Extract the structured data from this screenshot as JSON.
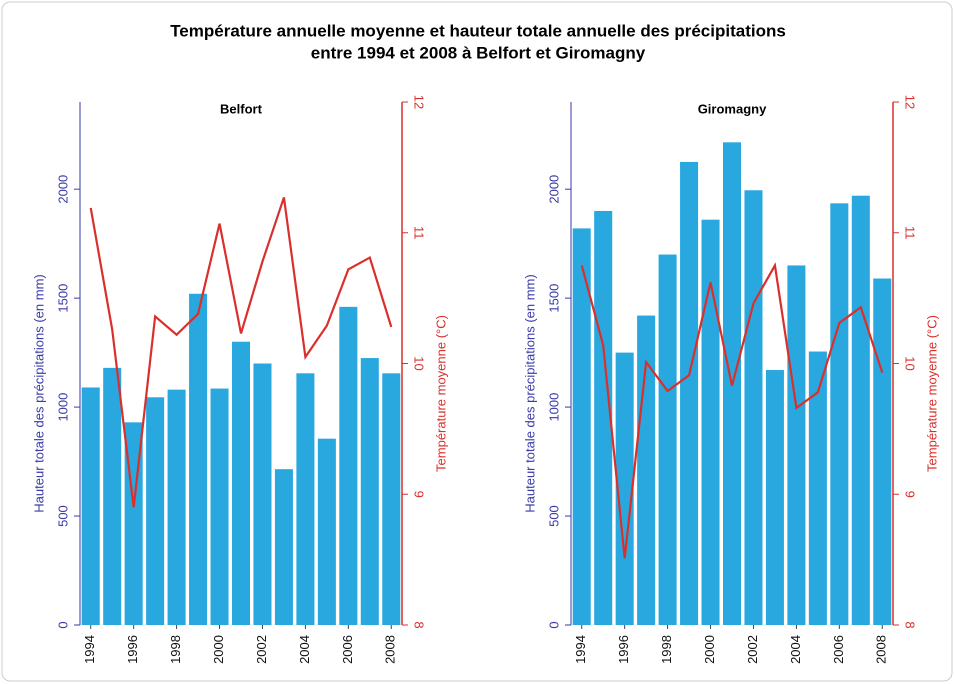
{
  "title": [
    "Température annuelle moyenne et  hauteur totale annuelle des précipitations",
    "entre 1994 et 2008 à Belfort et Giromagny"
  ],
  "chart_data": [
    {
      "type": "bar-line",
      "title": "Belfort",
      "y_label": "Hauteur totale des précipitations (en mm)",
      "y2_label": "Température moyenne (°C)",
      "x": [
        1994,
        1995,
        1996,
        1997,
        1998,
        1999,
        2000,
        2001,
        2002,
        2003,
        2004,
        2005,
        2006,
        2007,
        2008
      ],
      "xlim": [
        1993.5,
        2008.5
      ],
      "xticks": [
        1994,
        1996,
        1998,
        2000,
        2002,
        2004,
        2006,
        2008
      ],
      "ylim": [
        0,
        2400
      ],
      "yticks": [
        0,
        500,
        1000,
        1500,
        2000
      ],
      "y2lim": [
        8,
        12
      ],
      "y2ticks": [
        8,
        9,
        10,
        11,
        12
      ],
      "series": [
        {
          "type": "bar",
          "color": "#29a8e0",
          "values": [
            1090,
            1180,
            930,
            1045,
            1080,
            1520,
            1085,
            1300,
            1200,
            715,
            1155,
            855,
            1460,
            1225,
            1155
          ]
        },
        {
          "type": "line",
          "axis": "y2",
          "color": "#d9302c",
          "values": [
            11.19,
            10.26,
            8.9,
            10.36,
            10.22,
            10.38,
            11.07,
            10.23,
            10.78,
            11.27,
            10.05,
            10.29,
            10.72,
            10.81,
            10.28
          ]
        }
      ]
    },
    {
      "type": "bar-line",
      "title": "Giromagny",
      "y_label": "Hauteur totale des précipitations (en mm)",
      "y2_label": "Température moyenne (°C)",
      "x": [
        1994,
        1995,
        1996,
        1997,
        1998,
        1999,
        2000,
        2001,
        2002,
        2003,
        2004,
        2005,
        2006,
        2007,
        2008
      ],
      "xlim": [
        1993.5,
        2008.5
      ],
      "xticks": [
        1994,
        1996,
        1998,
        2000,
        2002,
        2004,
        2006,
        2008
      ],
      "ylim": [
        0,
        2400
      ],
      "yticks": [
        0,
        500,
        1000,
        1500,
        2000
      ],
      "y2lim": [
        8,
        12
      ],
      "y2ticks": [
        8,
        9,
        10,
        11,
        12
      ],
      "series": [
        {
          "type": "bar",
          "color": "#29a8e0",
          "values": [
            1820,
            1900,
            1250,
            1420,
            1700,
            2125,
            1860,
            2215,
            1995,
            1170,
            1650,
            1255,
            1935,
            1970,
            1590
          ]
        },
        {
          "type": "line",
          "axis": "y2",
          "color": "#d9302c",
          "values": [
            10.75,
            10.14,
            8.51,
            10.01,
            9.79,
            9.91,
            10.62,
            9.83,
            10.46,
            10.75,
            9.66,
            9.78,
            10.31,
            10.43,
            9.93
          ]
        }
      ]
    }
  ]
}
